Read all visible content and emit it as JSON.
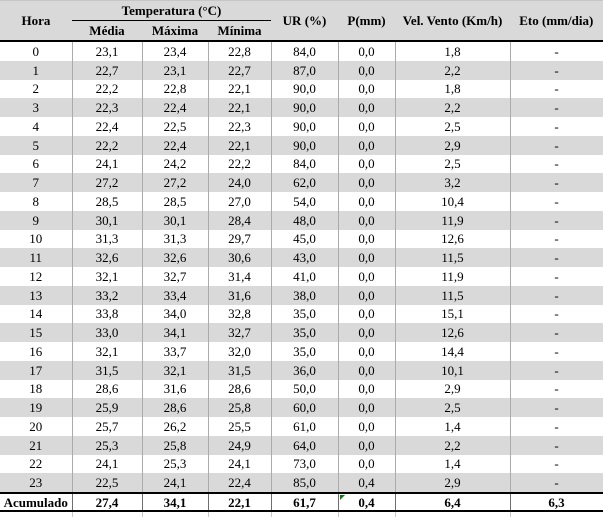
{
  "table": {
    "header": {
      "hora": "Hora",
      "temperatura_group": "Temperatura (°C)",
      "media": "Média",
      "maxima": "Máxima",
      "minima": "Mínima",
      "ur": "UR (%)",
      "p": "P(mm)",
      "vel_vento": "Vel. Vento (Km/h)",
      "eto": "Eto (mm/dia)"
    },
    "rows": [
      [
        "0",
        "23,1",
        "23,4",
        "22,8",
        "84,0",
        "0,0",
        "1,8",
        "-"
      ],
      [
        "1",
        "22,7",
        "23,1",
        "22,7",
        "87,0",
        "0,0",
        "2,2",
        "-"
      ],
      [
        "2",
        "22,2",
        "22,8",
        "22,1",
        "90,0",
        "0,0",
        "1,8",
        "-"
      ],
      [
        "3",
        "22,3",
        "22,4",
        "22,1",
        "90,0",
        "0,0",
        "2,2",
        "-"
      ],
      [
        "4",
        "22,4",
        "22,5",
        "22,3",
        "90,0",
        "0,0",
        "2,5",
        "-"
      ],
      [
        "5",
        "22,2",
        "22,4",
        "22,1",
        "90,0",
        "0,0",
        "2,9",
        "-"
      ],
      [
        "6",
        "24,1",
        "24,2",
        "22,2",
        "84,0",
        "0,0",
        "2,5",
        "-"
      ],
      [
        "7",
        "27,2",
        "27,2",
        "24,0",
        "62,0",
        "0,0",
        "3,2",
        "-"
      ],
      [
        "8",
        "28,5",
        "28,5",
        "27,0",
        "54,0",
        "0,0",
        "10,4",
        "-"
      ],
      [
        "9",
        "30,1",
        "30,1",
        "28,4",
        "48,0",
        "0,0",
        "11,9",
        "-"
      ],
      [
        "10",
        "31,3",
        "31,3",
        "29,7",
        "45,0",
        "0,0",
        "12,6",
        "-"
      ],
      [
        "11",
        "32,6",
        "32,6",
        "30,6",
        "43,0",
        "0,0",
        "11,5",
        "-"
      ],
      [
        "12",
        "32,1",
        "32,7",
        "31,4",
        "41,0",
        "0,0",
        "11,9",
        "-"
      ],
      [
        "13",
        "33,2",
        "33,4",
        "31,6",
        "38,0",
        "0,0",
        "11,5",
        "-"
      ],
      [
        "14",
        "33,8",
        "34,0",
        "32,8",
        "35,0",
        "0,0",
        "15,1",
        "-"
      ],
      [
        "15",
        "33,0",
        "34,1",
        "32,7",
        "35,0",
        "0,0",
        "12,6",
        "-"
      ],
      [
        "16",
        "32,1",
        "33,7",
        "32,0",
        "35,0",
        "0,0",
        "14,4",
        "-"
      ],
      [
        "17",
        "31,5",
        "32,1",
        "31,5",
        "36,0",
        "0,0",
        "10,1",
        "-"
      ],
      [
        "18",
        "28,6",
        "31,6",
        "28,6",
        "50,0",
        "0,0",
        "2,9",
        "-"
      ],
      [
        "19",
        "25,9",
        "28,6",
        "25,8",
        "60,0",
        "0,0",
        "2,5",
        "-"
      ],
      [
        "20",
        "25,7",
        "26,2",
        "25,5",
        "61,0",
        "0,0",
        "1,4",
        "-"
      ],
      [
        "21",
        "25,3",
        "25,8",
        "24,9",
        "64,0",
        "0,0",
        "2,2",
        "-"
      ],
      [
        "22",
        "24,1",
        "25,3",
        "24,1",
        "73,0",
        "0,0",
        "1,4",
        "-"
      ],
      [
        "23",
        "22,5",
        "24,1",
        "22,4",
        "85,0",
        "0,4",
        "2,9",
        "-"
      ]
    ],
    "footer": {
      "label": "Acumulado",
      "values": [
        "27,4",
        "34,1",
        "22,1",
        "61,7",
        "0,4",
        "6,4",
        "6,3"
      ],
      "error_marker_on_value": "0,4"
    }
  },
  "colors": {
    "header_bg": "#d9d9d9",
    "alt_row_bg": "#d9d9d9",
    "rule_black": "#000000",
    "grid_gray": "#ababab",
    "error_marker_green": "#0a7a12"
  }
}
